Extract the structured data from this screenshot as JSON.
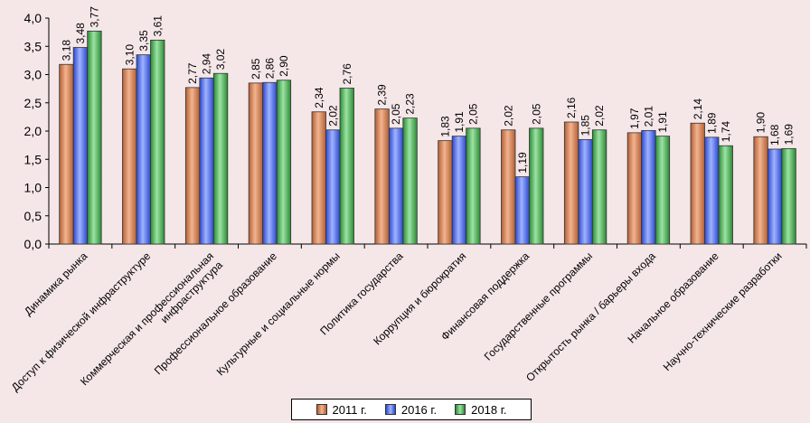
{
  "chart_data": {
    "type": "bar",
    "title": "",
    "xlabel": "",
    "ylabel": "",
    "ylim": [
      0,
      4
    ],
    "yticks": [
      "0,0",
      "0,5",
      "1,0",
      "1,5",
      "2,0",
      "2,5",
      "3,0",
      "3,5",
      "4,0"
    ],
    "categories": [
      [
        "Динамика рынка"
      ],
      [
        "Доступ к физической инфраструктуре"
      ],
      [
        "Коммерческая и профессиональная",
        "инфраструктура"
      ],
      [
        "Профессиональное образование"
      ],
      [
        "Культурные и социальные нормы"
      ],
      [
        "Политика государства"
      ],
      [
        "Коррупция и бюрократия"
      ],
      [
        "Финансовая поддержка"
      ],
      [
        "Государственные программы"
      ],
      [
        "Открытость рынка / барьеры входа"
      ],
      [
        "Начальное образование"
      ],
      [
        "Научно-технические разработки"
      ]
    ],
    "series": [
      {
        "name": "2011 г.",
        "color": "#d9865a",
        "values": [
          3.18,
          3.1,
          2.77,
          2.85,
          2.34,
          2.39,
          1.83,
          2.02,
          2.16,
          1.97,
          2.14,
          1.9
        ]
      },
      {
        "name": "2016 г.",
        "color": "#4a6cf0",
        "values": [
          3.48,
          3.35,
          2.94,
          2.86,
          2.02,
          2.05,
          1.91,
          1.19,
          1.85,
          2.01,
          1.89,
          1.68
        ]
      },
      {
        "name": "2018 г.",
        "color": "#3fa84a",
        "values": [
          3.77,
          3.61,
          3.02,
          2.9,
          2.76,
          2.23,
          2.05,
          2.05,
          2.02,
          1.91,
          1.74,
          1.69
        ]
      }
    ],
    "legend_position": "bottom"
  }
}
